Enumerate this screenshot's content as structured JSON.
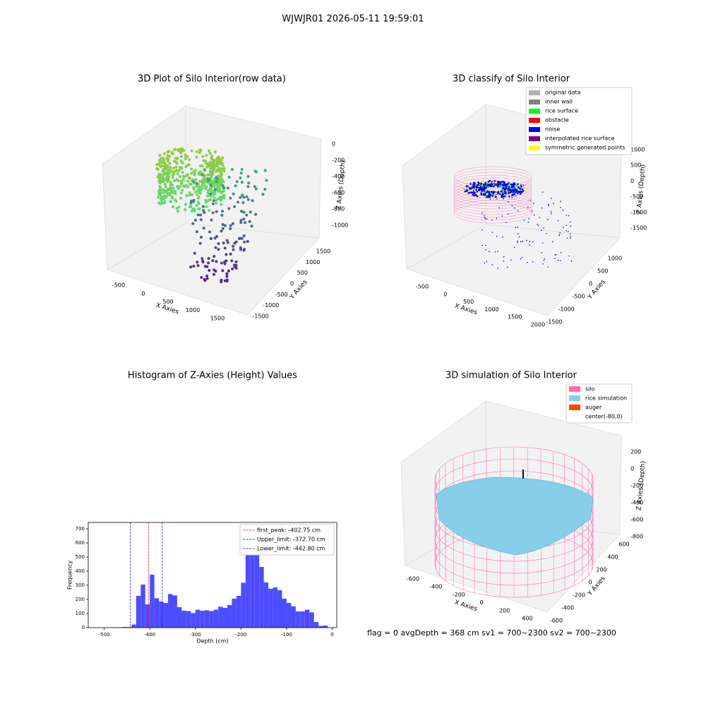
{
  "title": "WJWJR01 2026-05-11 19:59:01",
  "footer": "flag = 0     avgDepth = 368 cm  sv1 = 700~2300  sv2 = 700~2300",
  "chart_data": [
    {
      "type": "scatter3d",
      "title": "3D Plot of Silo Interior(row data)",
      "xlabel": "X Axies",
      "ylabel": "Y Axies",
      "zlabel": "Z Axies (Depth)",
      "xticks": [
        -500,
        0,
        500,
        1000,
        1500
      ],
      "yticks": [
        1500,
        1000,
        500,
        0,
        -500,
        -1000,
        -1500
      ],
      "zticks": [
        0,
        -200,
        -400,
        -600,
        -800,
        -1000
      ]
    },
    {
      "type": "scatter3d",
      "title": "3D classify of Silo Interior",
      "xlabel": "X Axies",
      "ylabel": "Y Axies",
      "zlabel": "Z Axies (Depth)",
      "xticks": [
        -500,
        0,
        500,
        1000,
        1500,
        2000
      ],
      "yticks": [
        1000,
        500,
        0,
        -500,
        -1000,
        -1500
      ],
      "zticks": [
        1000,
        500,
        0,
        -500,
        -1000,
        -1500
      ],
      "legend": [
        {
          "name": "original data",
          "color": "#b0b0b0"
        },
        {
          "name": "inner wall",
          "color": "#808080"
        },
        {
          "name": "rice surface",
          "color": "#00ff00"
        },
        {
          "name": "obstacle",
          "color": "#ff0000"
        },
        {
          "name": "noise",
          "color": "#0000ff"
        },
        {
          "name": "interpolated rice surface",
          "color": "#800080"
        },
        {
          "name": "symmetric generated points",
          "color": "#ffff00"
        }
      ]
    },
    {
      "type": "histogram",
      "title": "Histogram of Z-Axies (Height) Values",
      "xlabel": "Depth (cm)",
      "ylabel": "Frequency",
      "color": "#4d4dff",
      "bins": [
        -480,
        -470,
        -460,
        -450,
        -440,
        -430,
        -420,
        -410,
        -400,
        -390,
        -380,
        -370,
        -360,
        -350,
        -340,
        -330,
        -320,
        -310,
        -300,
        -290,
        -280,
        -270,
        -260,
        -250,
        -240,
        -230,
        -220,
        -210,
        -200,
        -190,
        -180,
        -170,
        -160,
        -150,
        -140,
        -130,
        -120,
        -110,
        -100,
        -90,
        -80,
        -70,
        -60,
        -50,
        -40,
        -30,
        -20,
        -10
      ],
      "values": [
        1,
        2,
        5,
        5,
        22,
        225,
        305,
        165,
        375,
        208,
        185,
        175,
        238,
        228,
        145,
        120,
        117,
        103,
        127,
        120,
        123,
        118,
        127,
        148,
        140,
        160,
        205,
        225,
        318,
        612,
        650,
        580,
        430,
        320,
        275,
        285,
        265,
        205,
        175,
        150,
        115,
        115,
        127,
        108,
        40,
        12,
        15
      ],
      "xlim": [
        -535,
        10
      ],
      "ylim": [
        0,
        745
      ],
      "xticks": [
        -500,
        -400,
        -300,
        -200,
        -100,
        0
      ],
      "yticks": [
        0,
        100,
        200,
        300,
        400,
        500,
        600,
        700
      ],
      "lines": [
        {
          "name": "first_peak: -402.75 cm",
          "value": -402.75,
          "color": "#ff0000"
        },
        {
          "name": "Upper_limit: -372.70 cm",
          "value": -372.7,
          "color": "#0000ff"
        },
        {
          "name": "Lower_limit: -442.80 cm",
          "value": -442.8,
          "color": "#0000ff"
        }
      ],
      "legend_position": "upper right"
    },
    {
      "type": "surface3d",
      "title": "3D simulation of Silo Interior",
      "xlabel": "X Axies",
      "ylabel": "Y Axies",
      "zlabel": "Z Axies (Depth)",
      "xticks": [
        -600,
        -400,
        -200,
        0,
        200,
        400
      ],
      "yticks": [
        -600,
        -400,
        -200,
        0,
        200,
        400,
        600
      ],
      "zticks": [
        200,
        0,
        -200,
        -400,
        -600,
        -800
      ],
      "legend": [
        {
          "name": "silo",
          "color": "#ff69b4"
        },
        {
          "name": "rice simulation",
          "color": "#87ceeb"
        },
        {
          "name": "auger",
          "color": "#ff4500"
        },
        {
          "name": "center(-80,0)",
          "color": null
        }
      ]
    }
  ]
}
